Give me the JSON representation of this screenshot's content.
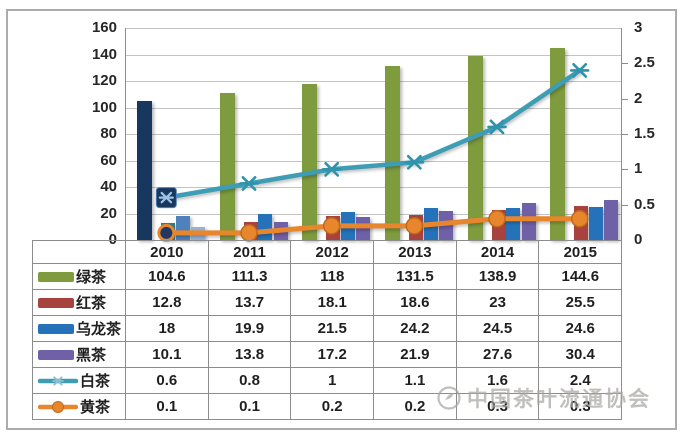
{
  "watermark": {
    "text": "中国茶叶流通协会"
  },
  "chart_data": {
    "type": "combo-bar-line",
    "title": "",
    "categories": [
      "2010",
      "2011",
      "2012",
      "2013",
      "2014",
      "2015"
    ],
    "left_axis": {
      "min": 0,
      "max": 160,
      "step": 20,
      "ticks": [
        0,
        20,
        40,
        60,
        80,
        100,
        120,
        140,
        160
      ]
    },
    "right_axis": {
      "min": 0,
      "max": 3,
      "step": 0.5,
      "ticks": [
        0,
        0.5,
        1,
        1.5,
        2,
        2.5,
        3
      ]
    },
    "grid": "horizontal",
    "legend_position": "table-left-column",
    "series": [
      {
        "name": "绿茶",
        "type": "bar",
        "axis": "left",
        "color": "#7E9B3E",
        "first_color": "#17375E",
        "values": [
          104.6,
          111.3,
          118,
          131.5,
          138.9,
          144.6
        ]
      },
      {
        "name": "红茶",
        "type": "bar",
        "axis": "left",
        "color": "#A8423F",
        "first_color": "#2D7C85",
        "values": [
          12.8,
          13.7,
          18.1,
          18.6,
          23,
          25.5
        ]
      },
      {
        "name": "乌龙茶",
        "type": "bar",
        "axis": "left",
        "color": "#2572BA",
        "first_color": "#4F81BD",
        "values": [
          18,
          19.9,
          21.5,
          24.2,
          24.5,
          24.6
        ]
      },
      {
        "name": "黑茶",
        "type": "bar",
        "axis": "left",
        "color": "#7060A8",
        "first_color": "#95B3D7",
        "values": [
          10.1,
          13.8,
          17.2,
          21.9,
          27.6,
          30.4
        ]
      },
      {
        "name": "白茶",
        "type": "line",
        "axis": "right",
        "color": "#3D9DB4",
        "marker": "x-asterisk",
        "marker_color": "#2E93AB",
        "first_marker": {
          "fill": "#17375E",
          "cross": "#9DC3E6"
        },
        "values": [
          0.6,
          0.8,
          1,
          1.1,
          1.6,
          2.4
        ]
      },
      {
        "name": "黄茶",
        "type": "line",
        "axis": "right",
        "color": "#E8862D",
        "marker": "circle",
        "marker_edge": "#BF6A1A",
        "first_marker": {
          "fill": "#1F3864",
          "ring": "#E8862D"
        },
        "values": [
          0.1,
          0.1,
          0.2,
          0.2,
          0.3,
          0.3
        ]
      }
    ]
  }
}
